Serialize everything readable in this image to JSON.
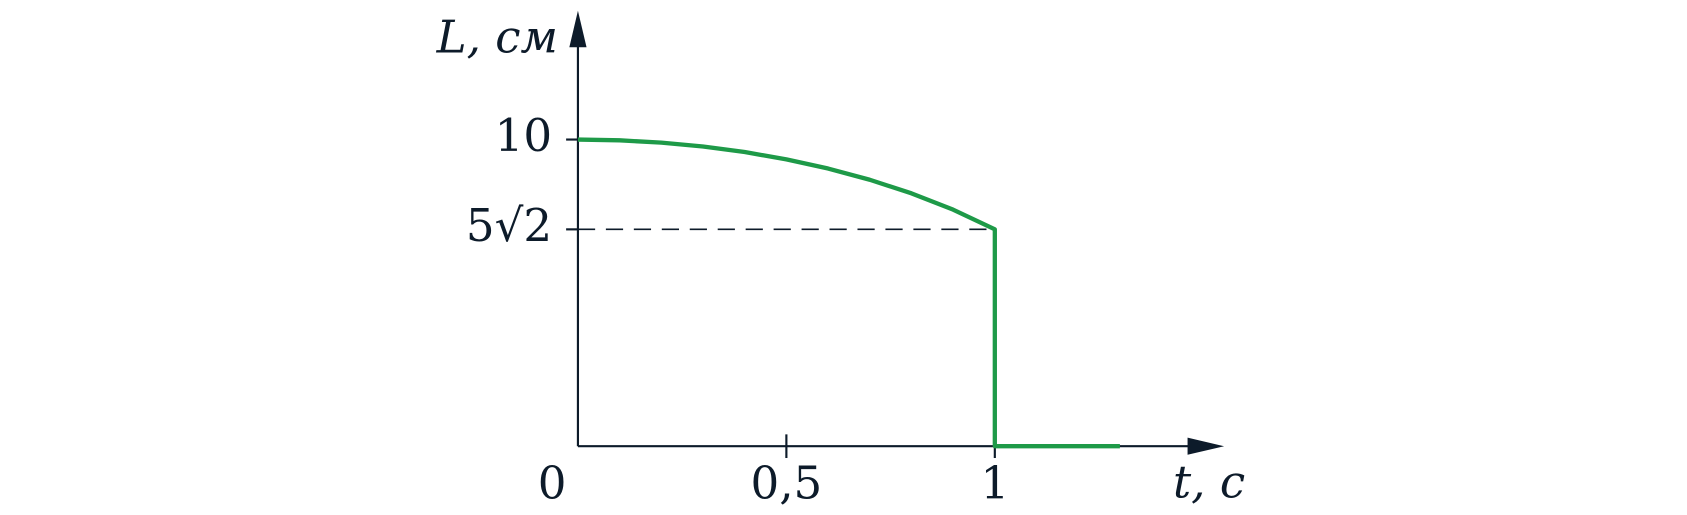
{
  "chart_data": {
    "type": "line",
    "xlabel": "t, с",
    "ylabel": "L, см",
    "x": [
      0,
      0.1,
      0.2,
      0.3,
      0.4,
      0.5,
      0.6,
      0.7,
      0.8,
      0.9,
      1,
      1,
      1.3
    ],
    "series": [
      {
        "color": "#1e9a48",
        "values": [
          10,
          9.975,
          9.899,
          9.772,
          9.592,
          9.354,
          9.055,
          8.689,
          8.246,
          7.714,
          7.071,
          0,
          0
        ]
      }
    ],
    "xlim": [
      0,
      1.55
    ],
    "ylim": [
      0,
      14.2
    ],
    "xticks": [
      0,
      {
        "value": 0.5,
        "label": "0,5"
      },
      1
    ],
    "yticks": [
      10,
      {
        "value": 7.071,
        "label": "5√2"
      }
    ],
    "hlines": [
      {
        "y": 7.071,
        "xmax": 1,
        "style": "dashed"
      }
    ],
    "axis_color": "#0d1b2a",
    "grid": false
  }
}
